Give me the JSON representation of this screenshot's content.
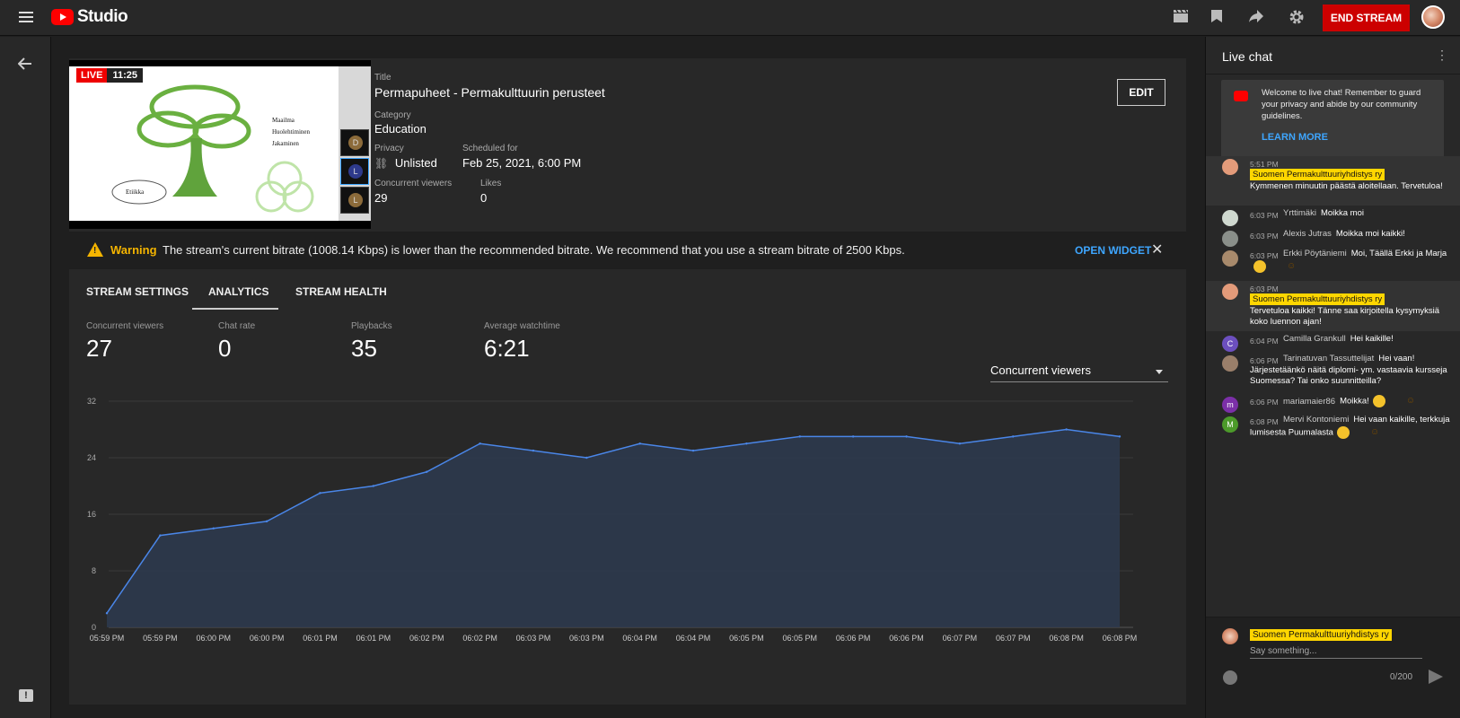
{
  "app": {
    "logo_text": "Studio",
    "end_stream": "END STREAM"
  },
  "colors": {
    "accent": "#3ea6ff",
    "live_red": "#cc0000",
    "warning": "#f4b400",
    "owner_badge": "#ffd600",
    "chart_line": "#4a86e8"
  },
  "video": {
    "live_label": "LIVE",
    "duration": "11:25",
    "slide_bullets": [
      "Maailma",
      "Huolehtiminen",
      "Jakaminen"
    ],
    "slide_ellipse_label": "Etiikka",
    "cams": [
      "D",
      "L",
      "L"
    ],
    "title_label": "Title",
    "title": "Permapuheet - Permakulttuurin perusteet",
    "category_label": "Category",
    "category": "Education",
    "privacy_label": "Privacy",
    "privacy": "Unlisted",
    "scheduled_label": "Scheduled for",
    "scheduled": "Feb 25, 2021, 6:00 PM",
    "viewers_label": "Concurrent viewers",
    "viewers": "29",
    "likes_label": "Likes",
    "likes": "0",
    "edit": "EDIT"
  },
  "warning": {
    "title": "Warning",
    "text": "The stream's current bitrate (1008.14 Kbps) is lower than the recommended bitrate. We recommend that you use a stream bitrate of 2500 Kbps.",
    "action": "OPEN WIDGET"
  },
  "tabs": [
    "STREAM SETTINGS",
    "ANALYTICS",
    "STREAM HEALTH"
  ],
  "stats": [
    {
      "label": "Concurrent viewers",
      "value": "27"
    },
    {
      "label": "Chat rate",
      "value": "0"
    },
    {
      "label": "Playbacks",
      "value": "35"
    },
    {
      "label": "Average watchtime",
      "value": "6:21"
    }
  ],
  "metric_select": "Concurrent viewers",
  "chart_data": {
    "type": "area",
    "x": [
      "05:59 PM",
      "05:59 PM",
      "06:00 PM",
      "06:00 PM",
      "06:01 PM",
      "06:01 PM",
      "06:02 PM",
      "06:02 PM",
      "06:03 PM",
      "06:03 PM",
      "06:04 PM",
      "06:04 PM",
      "06:05 PM",
      "06:05 PM",
      "06:06 PM",
      "06:06 PM",
      "06:07 PM",
      "06:07 PM",
      "06:08 PM",
      "06:08 PM"
    ],
    "series": [
      {
        "values": [
          2,
          13,
          14,
          15,
          19,
          20,
          22,
          26,
          25,
          24,
          26,
          25,
          26,
          27,
          27,
          27,
          26,
          27,
          28,
          27
        ]
      }
    ],
    "yticks": [
      0,
      8,
      16,
      24,
      32
    ],
    "ylim": [
      0,
      32
    ],
    "grid": true,
    "title": "",
    "xlabel": "",
    "ylabel": ""
  },
  "chat": {
    "title": "Live chat",
    "welcome": "Welcome to live chat! Remember to guard your privacy and abide by our community guidelines.",
    "learn_more": "LEARN MORE",
    "messages": [
      {
        "time": "5:51 PM",
        "author": "Suomen Permakulttuuriyhdistys ry",
        "owner": true,
        "text": "Kymmenen minuutin päästä aloitellaan. Tervetuloa!"
      },
      {
        "time": "6:03 PM",
        "author": "Yrttimäki",
        "owner": false,
        "text": "Moikka moi"
      },
      {
        "time": "6:03 PM",
        "author": "Alexis Jutras",
        "owner": false,
        "text": "Moikka moi kaikki!"
      },
      {
        "time": "6:03 PM",
        "author": "Erkki Pöytäniemi",
        "owner": false,
        "text": "Moi, Täällä Erkki ja Marja"
      },
      {
        "time": "6:03 PM",
        "author": "Suomen Permakulttuuriyhdistys ry",
        "owner": true,
        "text": "Tervetuloa kaikki! Tänne saa kirjoitella kysymyksiä koko luennon ajan!"
      },
      {
        "time": "6:04 PM",
        "author": "Camilla Grankull",
        "owner": false,
        "text": "Hei kaikille!"
      },
      {
        "time": "6:06 PM",
        "author": "Tarinatuvan Tassuttelijat",
        "owner": false,
        "text": "Hei vaan! Järjestetäänkö näitä diplomi- ym. vastaavia kursseja Suomessa? Tai onko suunnitteilla?"
      },
      {
        "time": "6:06 PM",
        "author": "mariamaier86",
        "owner": false,
        "text": "Moikka!"
      },
      {
        "time": "6:08 PM",
        "author": "Mervi Kontoniemi",
        "owner": false,
        "text": "Hei vaan kaikille, terkkuja lumisesta Puumalasta"
      }
    ],
    "input_author": "Suomen Permakulttuuriyhdistys ry",
    "input_placeholder": "Say something...",
    "counter": "0/200"
  }
}
